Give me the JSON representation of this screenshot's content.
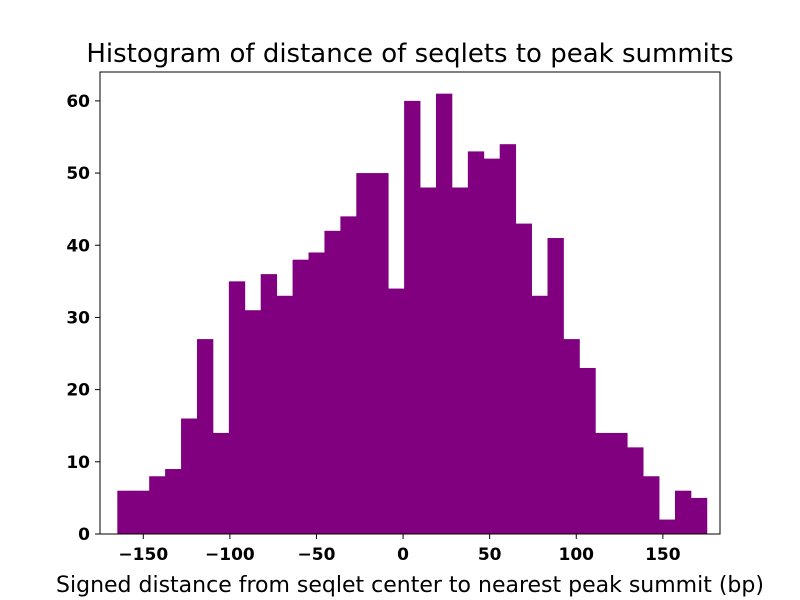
{
  "chart_data": {
    "type": "bar",
    "title": "Histogram of distance of seqlets to peak summits",
    "xlabel": "Signed distance from seqlet center to nearest peak summit (bp)",
    "ylabel": "",
    "bar_color": "#800080",
    "xlim": [
      -175,
      183
    ],
    "ylim": [
      0,
      64
    ],
    "bin_start": -165,
    "bin_width": 9.2,
    "values": [
      6,
      6,
      8,
      9,
      16,
      27,
      14,
      35,
      31,
      36,
      33,
      38,
      39,
      42,
      44,
      50,
      50,
      34,
      60,
      48,
      61,
      48,
      53,
      52,
      54,
      43,
      33,
      41,
      27,
      23,
      14,
      14,
      12,
      8,
      2,
      6,
      5
    ],
    "x_ticks": [
      {
        "value": -150,
        "label": "−150"
      },
      {
        "value": -100,
        "label": "−100"
      },
      {
        "value": -50,
        "label": "−50"
      },
      {
        "value": 0,
        "label": "0"
      },
      {
        "value": 50,
        "label": "50"
      },
      {
        "value": 100,
        "label": "100"
      },
      {
        "value": 150,
        "label": "150"
      }
    ],
    "y_ticks": [
      {
        "value": 0,
        "label": "0"
      },
      {
        "value": 10,
        "label": "10"
      },
      {
        "value": 20,
        "label": "20"
      },
      {
        "value": 30,
        "label": "30"
      },
      {
        "value": 40,
        "label": "40"
      },
      {
        "value": 50,
        "label": "50"
      },
      {
        "value": 60,
        "label": "60"
      }
    ],
    "grid": false
  }
}
